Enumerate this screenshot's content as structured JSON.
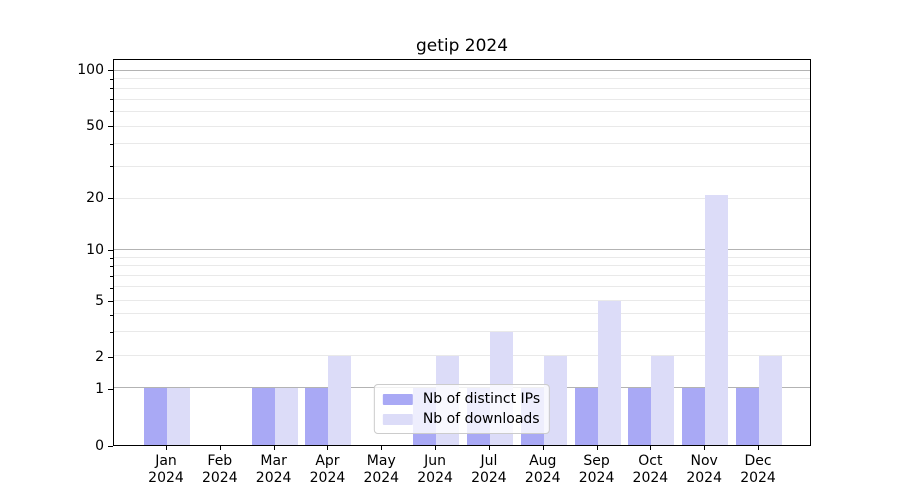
{
  "chart_data": {
    "type": "bar",
    "title": "getip 2024",
    "categories": [
      "Jan 2024",
      "Feb 2024",
      "Mar 2024",
      "Apr 2024",
      "May 2024",
      "Jun 2024",
      "Jul 2024",
      "Aug 2024",
      "Sep 2024",
      "Oct 2024",
      "Nov 2024",
      "Dec 2024"
    ],
    "series": [
      {
        "name": "Nb of distinct IPs",
        "color": "#a9a9f5",
        "values": [
          1,
          0,
          1,
          1,
          0,
          1,
          1,
          1,
          1,
          1,
          1,
          1
        ]
      },
      {
        "name": "Nb of downloads",
        "color": "#dcdcf8",
        "values": [
          1,
          0,
          1,
          2,
          0,
          2,
          3,
          2,
          5,
          2,
          21,
          2
        ]
      }
    ],
    "y_axis": {
      "scale": "symlog",
      "tick_labels": [
        "0",
        "1",
        "2",
        "5",
        "10",
        "20",
        "50",
        "100"
      ],
      "tick_values": [
        0,
        1,
        2,
        5,
        10,
        20,
        50,
        100
      ],
      "minor_ticks": [
        2,
        3,
        4,
        5,
        6,
        7,
        8,
        9,
        20,
        30,
        40,
        50,
        60,
        70,
        80,
        90
      ],
      "major_gridlines": [
        1,
        10,
        100
      ],
      "anchors": [
        [
          0,
          0
        ],
        [
          1,
          14.73
        ],
        [
          2,
          23.08
        ],
        [
          5,
          37.47
        ],
        [
          10,
          50.65
        ],
        [
          20,
          64.01
        ],
        [
          50,
          82.69
        ],
        [
          100,
          97.16
        ]
      ],
      "ylim": [
        0,
        115
      ]
    },
    "legend": {
      "position": "lower center"
    },
    "grid": "on",
    "colors": {
      "axis": "#000000",
      "major_grid": "#b3b3b3",
      "minor_grid": "#e9e9e9",
      "background": "#ffffff"
    }
  }
}
